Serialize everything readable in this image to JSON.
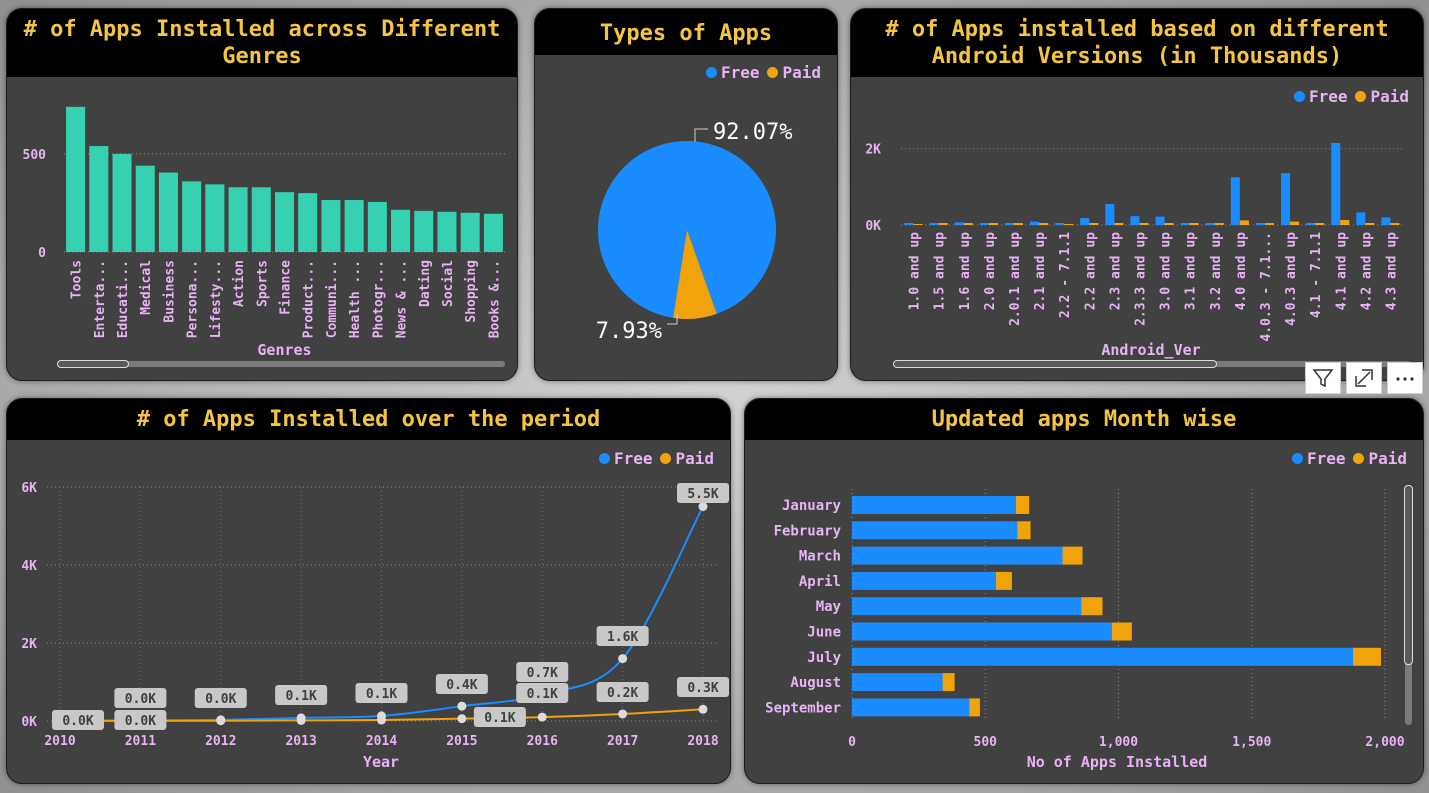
{
  "colors": {
    "free": "#1A8CFF",
    "paid": "#F0A30A",
    "genre_bar": "#36D1B0",
    "title": "#F4C542",
    "axis_label": "#E7B3F2"
  },
  "legend": {
    "free": "Free",
    "paid": "Paid"
  },
  "toolbar": {
    "filter_icon": "filter-icon",
    "focus_icon": "focus-mode-icon",
    "more_icon": "more-options-icon"
  },
  "charts": {
    "genres": {
      "title": "# of Apps Installed across Different Genres",
      "chart_data": {
        "type": "bar",
        "title": "# of Apps Installed across Different Genres",
        "xlabel": "Genres",
        "ylabel": "",
        "ylim": [
          0,
          780
        ],
        "yticks": [
          {
            "v": 0,
            "label": "0"
          },
          {
            "v": 500,
            "label": "500"
          }
        ],
        "categories": [
          "Tools",
          "Enterta...",
          "Educati...",
          "Medical",
          "Business",
          "Persona...",
          "Lifesty...",
          "Action",
          "Sports",
          "Finance",
          "Product...",
          "Communi...",
          "Health ...",
          "Photogr...",
          "News & ...",
          "Dating",
          "Social",
          "Shopping",
          "Books &..."
        ],
        "values": [
          740,
          540,
          500,
          440,
          405,
          360,
          345,
          330,
          330,
          305,
          300,
          265,
          265,
          255,
          215,
          210,
          205,
          200,
          195
        ],
        "grid": true
      }
    },
    "types": {
      "title": "Types of Apps",
      "chart_data": {
        "type": "pie",
        "title": "Types of Apps",
        "labels": [
          "Free",
          "Paid"
        ],
        "values": [
          92.07,
          7.93
        ],
        "data_labels": [
          "92.07%",
          "7.93%"
        ]
      }
    },
    "android": {
      "title": "# of Apps installed based on different Android Versions (in Thousands)",
      "chart_data": {
        "type": "bar",
        "title": "# of Apps installed based on different Android Versions (in Thousands)",
        "xlabel": "Android_Ver",
        "ylabel": "",
        "ylim": [
          0,
          2700
        ],
        "yticks": [
          {
            "v": 0,
            "label": "0K"
          },
          {
            "v": 2000,
            "label": "2K"
          }
        ],
        "categories": [
          "1.0 and up",
          "1.5 and up",
          "1.6 and up",
          "2.0 and up",
          "2.0.1 and up",
          "2.1 and up",
          "2.2 - 7.1.1",
          "2.2 and up",
          "2.3 and up",
          "2.3.3 and up",
          "3.0 and up",
          "3.1 and up",
          "3.2 and up",
          "4.0 and up",
          "4.0.3 - 7.1...",
          "4.0.3 and up",
          "4.1 - 7.1.1",
          "4.1 and up",
          "4.2 and up",
          "4.3 and up"
        ],
        "series": [
          {
            "name": "Free",
            "values": [
              5,
              20,
              70,
              20,
              10,
              90,
              5,
              180,
              550,
              230,
              220,
              20,
              30,
              1250,
              10,
              1360,
              10,
              2150,
              330,
              200
            ]
          },
          {
            "name": "Paid",
            "values": [
              0,
              5,
              10,
              5,
              2,
              10,
              0,
              20,
              50,
              20,
              10,
              5,
              5,
              120,
              2,
              90,
              2,
              130,
              40,
              30
            ]
          }
        ],
        "grid": true
      }
    },
    "period": {
      "title": "# of Apps Installed over the period",
      "chart_data": {
        "type": "line",
        "title": "# of Apps Installed over the period",
        "xlabel": "Year",
        "ylabel": "",
        "x": [
          "2010",
          "2011",
          "2012",
          "2013",
          "2014",
          "2015",
          "2016",
          "2017",
          "2018"
        ],
        "ylim": [
          0,
          6000
        ],
        "yticks": [
          {
            "v": 0,
            "label": "0K"
          },
          {
            "v": 2000,
            "label": "2K"
          },
          {
            "v": 4000,
            "label": "4K"
          },
          {
            "v": 6000,
            "label": "6K"
          }
        ],
        "series": [
          {
            "name": "Free",
            "values": [
              10,
              15,
              30,
              80,
              130,
              380,
              680,
              1600,
              5500
            ],
            "labels": [
              "0.0K",
              "0.0K",
              "0.0K",
              "0.1K",
              "0.1K",
              "0.4K",
              "0.7K",
              "1.6K",
              "5.5K"
            ]
          },
          {
            "name": "Paid",
            "values": [
              2,
              3,
              8,
              15,
              25,
              60,
              100,
              180,
              300
            ],
            "labels": [
              "",
              "0.0K",
              "",
              "",
              "",
              "0.1K",
              "0.1K",
              "0.2K",
              "0.3K"
            ]
          }
        ],
        "grid": true
      }
    },
    "monthly": {
      "title": "Updated apps Month wise",
      "chart_data": {
        "type": "bar",
        "orientation": "horizontal",
        "stacked": true,
        "title": "Updated apps Month wise",
        "xlabel": "No of Apps Installed",
        "ylabel": "",
        "xlim": [
          0,
          2000
        ],
        "xticks": [
          {
            "v": 0,
            "label": "0"
          },
          {
            "v": 500,
            "label": "500"
          },
          {
            "v": 1000,
            "label": "1,000"
          },
          {
            "v": 1500,
            "label": "1,500"
          },
          {
            "v": 2000,
            "label": "2,000"
          }
        ],
        "categories": [
          "January",
          "February",
          "March",
          "April",
          "May",
          "June",
          "July",
          "August",
          "September"
        ],
        "series": [
          {
            "name": "Free",
            "values": [
              615,
              620,
              790,
              540,
              860,
              975,
              1880,
              340,
              440
            ]
          },
          {
            "name": "Paid",
            "values": [
              50,
              50,
              75,
              60,
              80,
              75,
              105,
              45,
              40
            ]
          }
        ],
        "grid": true
      }
    }
  }
}
